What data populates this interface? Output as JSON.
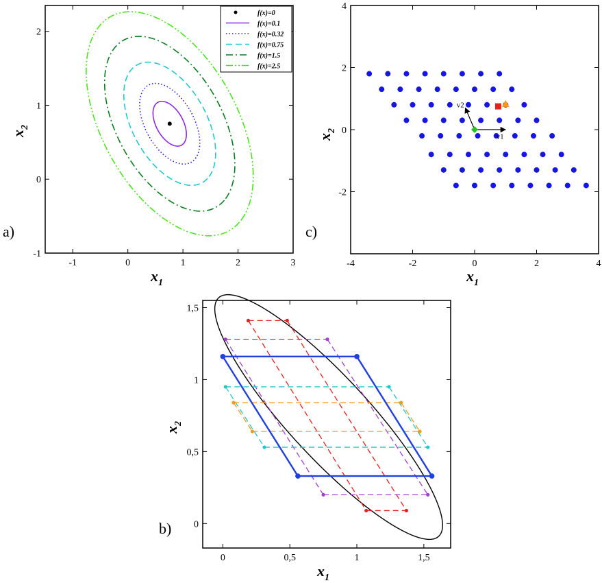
{
  "chart_data": [
    {
      "panel": "a)",
      "type": "line",
      "xlabel": "x1",
      "ylabel": "x2",
      "xlim": [
        -1.5,
        3
      ],
      "ylim": [
        -1,
        2.35
      ],
      "xticks": [
        "-1",
        "0",
        "1",
        "2",
        "3"
      ],
      "yticks": [
        "-1",
        "0",
        "1",
        "2"
      ],
      "legend_position": "top-right",
      "minimum": {
        "label": "f(x)=0",
        "x": 0.76,
        "y": 0.75
      },
      "level_sets": [
        {
          "label": "f(x)=0.1",
          "scale": 0.2,
          "color": "#8a2be2",
          "style": "solid"
        },
        {
          "label": "f(x)=0.32",
          "scale": 0.36,
          "color": "#1f1fd0",
          "style": "dotted"
        },
        {
          "label": "f(x)=0.75",
          "scale": 0.55,
          "color": "#20c8c8",
          "style": "dashed"
        },
        {
          "label": "f(x)=1.5",
          "scale": 0.78,
          "color": "#0c7a1e",
          "style": "dashdot"
        },
        {
          "label": "f(x)=2.5",
          "scale": 1.0,
          "color": "#4ce31e",
          "style": "dashdotdot"
        }
      ],
      "ellipse_shape": {
        "center": [
          0.76,
          0.75
        ],
        "axis_u": [
          1.3,
          -1.3
        ],
        "axis_v": [
          0.78,
          0.78
        ],
        "note_units": "data units of a unit level set"
      }
    },
    {
      "panel": "c)",
      "type": "scatter",
      "xlabel": "x1",
      "ylabel": "x2",
      "xlim": [
        -4,
        4
      ],
      "ylim": [
        -4,
        4
      ],
      "xticks": [
        "-4",
        "-2",
        "0",
        "2",
        "4"
      ],
      "yticks": [
        "-2",
        "0",
        "2",
        "4"
      ],
      "lattice": {
        "v1": [
          1,
          0
        ],
        "v2": [
          -0.3,
          0.7
        ],
        "rows": [
          {
            "y": 1.8,
            "x_start": -3.4,
            "count": 8
          },
          {
            "y": 1.3,
            "x_start": -3.0,
            "count": 8
          },
          {
            "y": 0.8,
            "x_start": -2.6,
            "count": 8
          },
          {
            "y": 0.3,
            "x_start": -2.2,
            "count": 8
          },
          {
            "y": -0.2,
            "x_start": -1.7,
            "count": 8
          },
          {
            "y": -0.8,
            "x_start": -1.4,
            "count": 8
          },
          {
            "y": -1.3,
            "x_start": -1.0,
            "count": 8
          },
          {
            "y": -1.8,
            "x_start": -0.6,
            "count": 8
          }
        ],
        "row_spacing": 0.6,
        "color": "#1515e6"
      },
      "markers": [
        {
          "name": "origin",
          "x": 0,
          "y": 0,
          "shape": "diamond",
          "color": "#27c227"
        },
        {
          "name": "square",
          "x": 0.76,
          "y": 0.75,
          "shape": "square",
          "color": "#e32020"
        },
        {
          "name": "triangle",
          "x": 1.0,
          "y": 0.82,
          "shape": "triangle",
          "color": "#f59a1a"
        }
      ],
      "vector_labels": [
        "v1",
        "v2"
      ]
    },
    {
      "panel": "b)",
      "type": "line",
      "xlabel": "x1",
      "ylabel": "x2",
      "xlim": [
        -0.15,
        1.7
      ],
      "ylim": [
        -0.17,
        1.55
      ],
      "xticks": [
        "0",
        "0,5",
        "1",
        "1,5"
      ],
      "yticks": [
        "0",
        "0,5",
        "1",
        "1,5"
      ],
      "ellipse": {
        "center": [
          0.79,
          0.74
        ],
        "axis_u": [
          0.825,
          -0.825
        ],
        "axis_v": [
          0.205,
          0.205
        ],
        "color": "#000000"
      },
      "parallelogram": {
        "color": "#1f3fe0",
        "vertices": [
          [
            0.0,
            1.16
          ],
          [
            1.0,
            1.16
          ],
          [
            1.56,
            0.33
          ],
          [
            0.56,
            0.33
          ]
        ]
      },
      "dashed_segments": [
        {
          "color": "#e32020",
          "x1": 0.19,
          "y1": 1.41,
          "x2": 1.07,
          "y2": 0.09
        },
        {
          "color": "#e32020",
          "x1": 0.48,
          "y1": 1.41,
          "x2": 1.37,
          "y2": 0.09
        },
        {
          "color": "#e32020",
          "x1": 0.19,
          "y1": 1.41,
          "x2": 0.48,
          "y2": 1.41
        },
        {
          "color": "#e32020",
          "x1": 1.07,
          "y1": 0.09,
          "x2": 1.37,
          "y2": 0.09
        },
        {
          "color": "#a040d0",
          "x1": 0.02,
          "y1": 1.28,
          "x2": 0.78,
          "y2": 1.28
        },
        {
          "color": "#a040d0",
          "x1": 0.75,
          "y1": 0.2,
          "x2": 1.53,
          "y2": 0.2
        },
        {
          "color": "#a040d0",
          "x1": 0.02,
          "y1": 1.28,
          "x2": 0.75,
          "y2": 0.2
        },
        {
          "color": "#a040d0",
          "x1": 0.78,
          "y1": 1.28,
          "x2": 1.53,
          "y2": 0.2
        },
        {
          "color": "#20c8c8",
          "x1": 0.02,
          "y1": 0.95,
          "x2": 1.24,
          "y2": 0.95
        },
        {
          "color": "#20c8c8",
          "x1": 0.31,
          "y1": 0.53,
          "x2": 1.53,
          "y2": 0.53
        },
        {
          "color": "#20c8c8",
          "x1": 0.02,
          "y1": 0.95,
          "x2": 0.31,
          "y2": 0.53
        },
        {
          "color": "#20c8c8",
          "x1": 1.24,
          "y1": 0.95,
          "x2": 1.53,
          "y2": 0.53
        },
        {
          "color": "#f59a1a",
          "x1": 0.08,
          "y1": 0.84,
          "x2": 1.33,
          "y2": 0.84
        },
        {
          "color": "#f59a1a",
          "x1": 0.22,
          "y1": 0.64,
          "x2": 1.47,
          "y2": 0.64
        },
        {
          "color": "#f59a1a",
          "x1": 0.08,
          "y1": 0.84,
          "x2": 0.22,
          "y2": 0.64
        },
        {
          "color": "#f59a1a",
          "x1": 1.33,
          "y1": 0.84,
          "x2": 1.47,
          "y2": 0.64
        }
      ]
    }
  ]
}
